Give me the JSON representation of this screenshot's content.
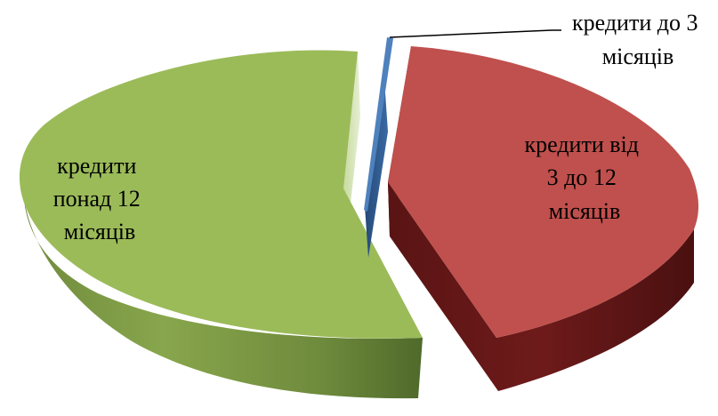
{
  "chart_data": {
    "type": "pie",
    "style": "3d-exploded",
    "title": "",
    "legend": "none",
    "slices": [
      {
        "name": "кредити до 3 місяців",
        "label_lines": [
          "кредити до 3",
          "місяців"
        ],
        "value": 1,
        "color": "#4f81bd",
        "exploded": true
      },
      {
        "name": "кредити від 3 до 12 місяців",
        "label_lines": [
          "кредити від",
          "3 до 12",
          "місяців"
        ],
        "value": 43,
        "color": "#c0504d",
        "exploded": true
      },
      {
        "name": "кредити понад 12 місяців",
        "label_lines": [
          "кредити",
          "понад 12",
          "місяців"
        ],
        "value": 56,
        "color": "#9bbb59",
        "exploded": true
      }
    ]
  }
}
